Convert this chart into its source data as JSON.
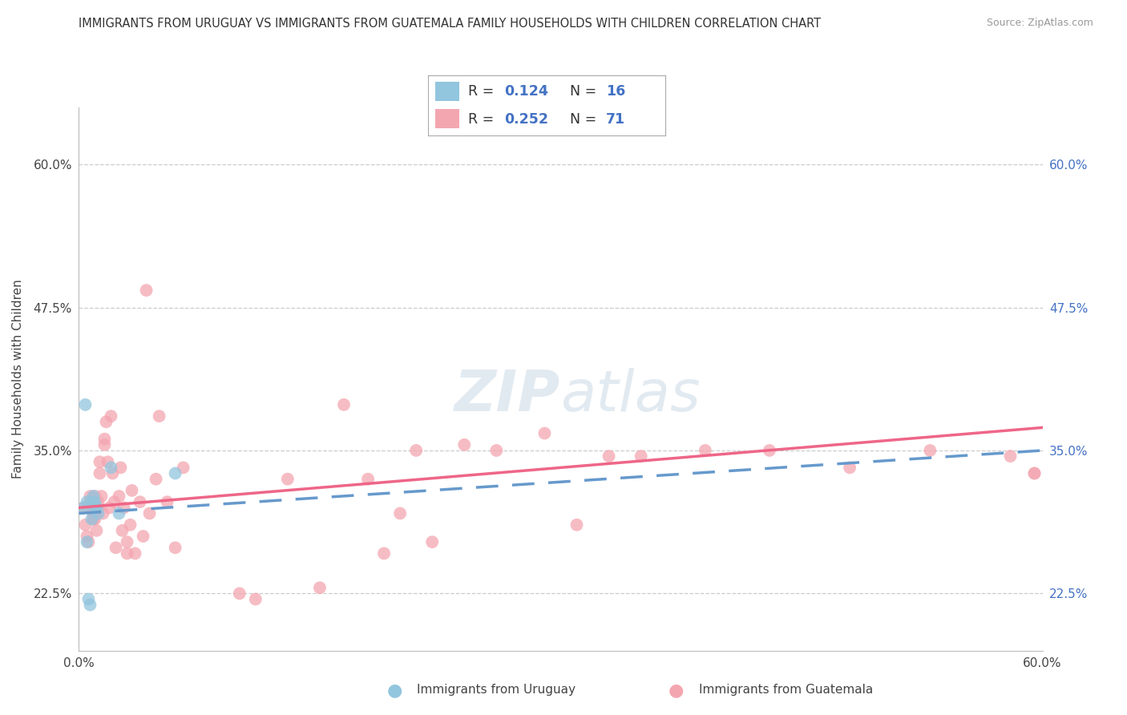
{
  "title": "IMMIGRANTS FROM URUGUAY VS IMMIGRANTS FROM GUATEMALA FAMILY HOUSEHOLDS WITH CHILDREN CORRELATION CHART",
  "source": "Source: ZipAtlas.com",
  "ylabel": "Family Households with Children",
  "xlim": [
    0.0,
    0.6
  ],
  "ylim": [
    0.175,
    0.65
  ],
  "ytick_values": [
    0.225,
    0.35,
    0.475,
    0.6
  ],
  "ytick_labels": [
    "22.5%",
    "35.0%",
    "47.5%",
    "60.0%"
  ],
  "color_uruguay": "#92C5DE",
  "color_guatemala": "#F4A6B0",
  "line_color_uruguay": "#6699CC",
  "line_color_guatemala": "#EE6688",
  "watermark": "ZIPAtlas",
  "background_color": "#FFFFFF",
  "grid_color": "#CCCCCC",
  "uruguay_x": [
    0.003,
    0.004,
    0.005,
    0.005,
    0.006,
    0.007,
    0.008,
    0.008,
    0.009,
    0.01,
    0.01,
    0.011,
    0.012,
    0.02,
    0.025,
    0.06
  ],
  "uruguay_y": [
    0.3,
    0.39,
    0.305,
    0.27,
    0.22,
    0.215,
    0.29,
    0.305,
    0.31,
    0.305,
    0.3,
    0.3,
    0.295,
    0.335,
    0.295,
    0.33
  ],
  "guatemala_x": [
    0.003,
    0.004,
    0.005,
    0.006,
    0.007,
    0.007,
    0.008,
    0.008,
    0.009,
    0.009,
    0.01,
    0.01,
    0.01,
    0.011,
    0.011,
    0.012,
    0.012,
    0.013,
    0.013,
    0.014,
    0.015,
    0.016,
    0.016,
    0.017,
    0.018,
    0.019,
    0.02,
    0.021,
    0.022,
    0.023,
    0.025,
    0.026,
    0.027,
    0.028,
    0.03,
    0.03,
    0.032,
    0.033,
    0.035,
    0.038,
    0.04,
    0.042,
    0.044,
    0.048,
    0.05,
    0.055,
    0.06,
    0.065,
    0.1,
    0.11,
    0.13,
    0.15,
    0.165,
    0.18,
    0.19,
    0.2,
    0.21,
    0.22,
    0.24,
    0.26,
    0.29,
    0.31,
    0.33,
    0.35,
    0.39,
    0.43,
    0.48,
    0.53,
    0.58,
    0.595,
    0.595
  ],
  "guatemala_y": [
    0.3,
    0.285,
    0.275,
    0.27,
    0.305,
    0.31,
    0.3,
    0.305,
    0.29,
    0.295,
    0.29,
    0.305,
    0.31,
    0.28,
    0.295,
    0.3,
    0.305,
    0.34,
    0.33,
    0.31,
    0.295,
    0.36,
    0.355,
    0.375,
    0.34,
    0.3,
    0.38,
    0.33,
    0.305,
    0.265,
    0.31,
    0.335,
    0.28,
    0.3,
    0.26,
    0.27,
    0.285,
    0.315,
    0.26,
    0.305,
    0.275,
    0.49,
    0.295,
    0.325,
    0.38,
    0.305,
    0.265,
    0.335,
    0.225,
    0.22,
    0.325,
    0.23,
    0.39,
    0.325,
    0.26,
    0.295,
    0.35,
    0.27,
    0.355,
    0.35,
    0.365,
    0.285,
    0.345,
    0.345,
    0.35,
    0.35,
    0.335,
    0.35,
    0.345,
    0.33,
    0.33
  ],
  "line_u_x0": 0.0,
  "line_u_x1": 0.6,
  "line_u_y0": 0.295,
  "line_u_y1": 0.35,
  "line_g_x0": 0.0,
  "line_g_x1": 0.6,
  "line_g_y0": 0.3,
  "line_g_y1": 0.37
}
